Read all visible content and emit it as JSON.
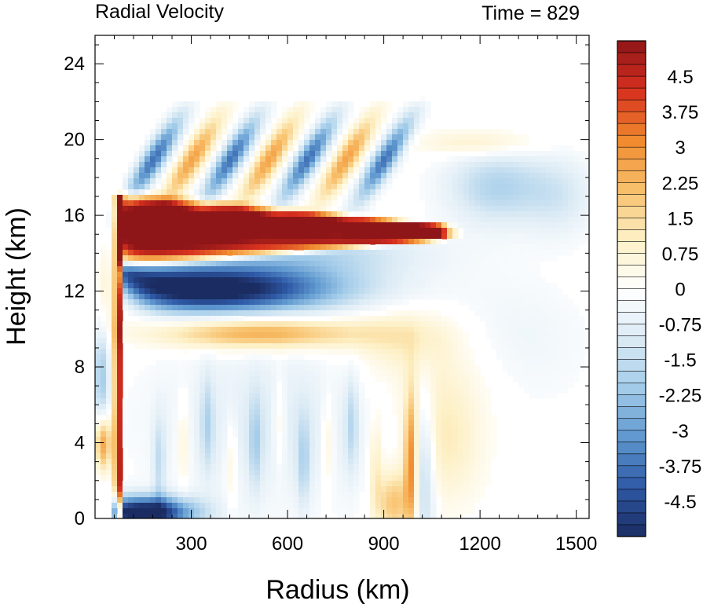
{
  "chart_data": {
    "type": "heatmap",
    "title_left": "Radial Velocity",
    "title_right": "Time = 829",
    "xlabel": "Radius (km)",
    "ylabel": "Height (km)",
    "xlim": [
      0,
      1540
    ],
    "ylim": [
      0,
      25.5
    ],
    "x_ticks": [
      300,
      600,
      900,
      1200,
      1500
    ],
    "x_tick_labels": [
      "300",
      "600",
      "900",
      "1200",
      "1500"
    ],
    "y_ticks": [
      0,
      4,
      8,
      12,
      16,
      20,
      24
    ],
    "y_tick_labels": [
      "0",
      "4",
      "8",
      "12",
      "16",
      "20",
      "24"
    ],
    "colorbar": {
      "levels_min": -5.25,
      "levels_max": 5.25,
      "level_step": 0.25,
      "labels": [
        "4.5",
        "3.75",
        "3",
        "2.25",
        "1.5",
        "0.75",
        "0",
        "-0.75",
        "-1.5",
        "-2.25",
        "-3",
        "-3.75",
        "-4.5"
      ],
      "label_values": [
        4.5,
        3.75,
        3,
        2.25,
        1.5,
        0.75,
        0,
        -0.75,
        -1.5,
        -2.25,
        -3,
        -3.75,
        -4.5
      ],
      "color_stops": [
        "#1b2c62",
        "#2f5aa7",
        "#5f98cf",
        "#a3cce9",
        "#dcebf5",
        "#ffffff",
        "#fdf0c5",
        "#f8c06b",
        "#f08a2e",
        "#d7301f",
        "#8e1518"
      ]
    },
    "features": [
      {
        "name": "outflow-anvil-core",
        "x_range": [
          80,
          1080
        ],
        "y_range": [
          13.5,
          17.2
        ],
        "value": 5.0
      },
      {
        "name": "inflow-below-outflow",
        "x_range": [
          80,
          700
        ],
        "y_range": [
          10.5,
          13.5
        ],
        "value": -5.0
      },
      {
        "name": "upper-inflow-bands",
        "x_range": [
          100,
          1050
        ],
        "y_range": [
          17.5,
          21
        ],
        "value": -3.5
      },
      {
        "name": "midlevel-outflow",
        "x_range": [
          250,
          780
        ],
        "y_range": [
          9,
          10.5
        ],
        "value": 2.8
      },
      {
        "name": "eyewall-updraft",
        "x_range": [
          55,
          85
        ],
        "y_range": [
          0,
          17
        ],
        "value": 5.0
      },
      {
        "name": "boundary-layer-inflow",
        "x_range": [
          55,
          280
        ],
        "y_range": [
          0,
          1.2
        ],
        "value": -5.0
      },
      {
        "name": "rainband-outflow",
        "x_range": [
          960,
          1000
        ],
        "y_range": [
          0,
          6.5
        ],
        "value": 3.0
      },
      {
        "name": "inner-low-outflow",
        "x_range": [
          0,
          70
        ],
        "y_range": [
          2.5,
          5.5
        ],
        "value": 3.5
      },
      {
        "name": "outer-upper-inflow",
        "x_range": [
          1150,
          1350
        ],
        "y_range": [
          16,
          19
        ],
        "value": -1.8
      }
    ]
  }
}
